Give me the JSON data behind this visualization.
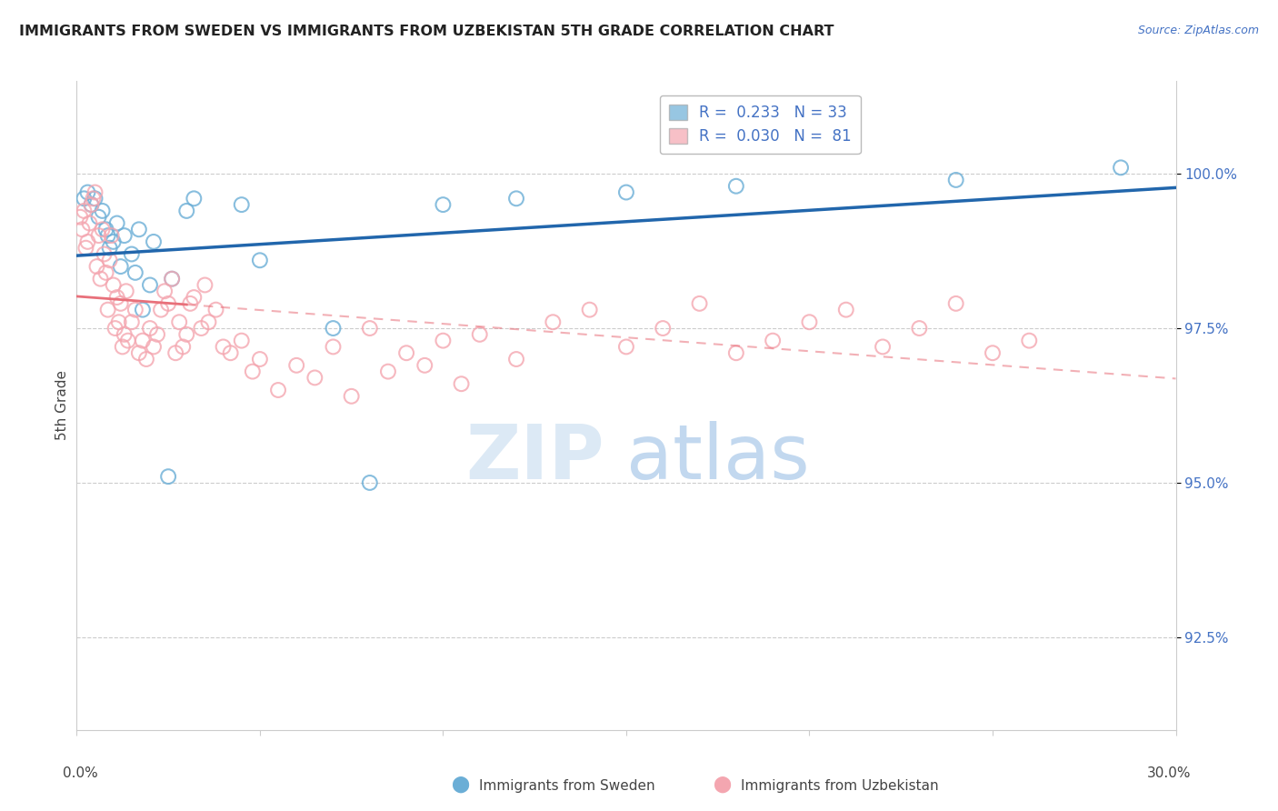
{
  "title": "IMMIGRANTS FROM SWEDEN VS IMMIGRANTS FROM UZBEKISTAN 5TH GRADE CORRELATION CHART",
  "source": "Source: ZipAtlas.com",
  "ylabel": "5th Grade",
  "yaxis_labels": [
    "92.5%",
    "95.0%",
    "97.5%",
    "100.0%"
  ],
  "yaxis_values": [
    92.5,
    95.0,
    97.5,
    100.0
  ],
  "xlim": [
    0.0,
    30.0
  ],
  "ylim": [
    91.0,
    101.5
  ],
  "legend_sweden": "R =  0.233   N = 33",
  "legend_uzbekistan": "R =  0.030   N =  81",
  "sweden_color": "#6baed6",
  "uzbekistan_color": "#f4a6b0",
  "trend_sweden_color": "#2166ac",
  "trend_uzbekistan_color": "#e8707a",
  "sweden_x": [
    0.2,
    0.3,
    0.4,
    0.5,
    0.6,
    0.7,
    0.8,
    0.85,
    0.9,
    1.0,
    1.1,
    1.2,
    1.3,
    1.5,
    1.6,
    1.7,
    1.8,
    2.0,
    2.1,
    2.5,
    2.6,
    3.0,
    3.2,
    4.5,
    5.0,
    7.0,
    8.0,
    10.0,
    12.0,
    15.0,
    18.0,
    24.0,
    28.5
  ],
  "sweden_y": [
    99.6,
    99.7,
    99.5,
    99.6,
    99.3,
    99.4,
    99.1,
    99.0,
    98.8,
    98.9,
    99.2,
    98.5,
    99.0,
    98.7,
    98.4,
    99.1,
    97.8,
    98.2,
    98.9,
    95.1,
    98.3,
    99.4,
    99.6,
    99.5,
    98.6,
    97.5,
    95.0,
    99.5,
    99.6,
    99.7,
    99.8,
    99.9,
    100.1
  ],
  "uzbekistan_x": [
    0.1,
    0.15,
    0.2,
    0.25,
    0.3,
    0.35,
    0.4,
    0.45,
    0.5,
    0.55,
    0.6,
    0.65,
    0.7,
    0.75,
    0.8,
    0.85,
    0.9,
    0.95,
    1.0,
    1.05,
    1.1,
    1.15,
    1.2,
    1.25,
    1.3,
    1.35,
    1.4,
    1.5,
    1.6,
    1.7,
    1.8,
    1.9,
    2.0,
    2.1,
    2.2,
    2.3,
    2.4,
    2.5,
    2.6,
    2.7,
    2.8,
    2.9,
    3.0,
    3.1,
    3.2,
    3.4,
    3.5,
    3.6,
    3.8,
    4.0,
    4.2,
    4.5,
    4.8,
    5.0,
    5.5,
    6.0,
    6.5,
    7.0,
    7.5,
    8.0,
    8.5,
    9.0,
    9.5,
    10.0,
    10.5,
    11.0,
    12.0,
    13.0,
    14.0,
    15.0,
    16.0,
    17.0,
    18.0,
    19.0,
    20.0,
    21.0,
    22.0,
    23.0,
    24.0,
    25.0,
    26.0
  ],
  "uzbekistan_y": [
    99.3,
    99.1,
    99.4,
    98.8,
    98.9,
    99.2,
    99.5,
    99.6,
    99.7,
    98.5,
    99.0,
    98.3,
    99.1,
    98.7,
    98.4,
    97.8,
    98.6,
    99.0,
    98.2,
    97.5,
    98.0,
    97.6,
    97.9,
    97.2,
    97.4,
    98.1,
    97.3,
    97.6,
    97.8,
    97.1,
    97.3,
    97.0,
    97.5,
    97.2,
    97.4,
    97.8,
    98.1,
    97.9,
    98.3,
    97.1,
    97.6,
    97.2,
    97.4,
    97.9,
    98.0,
    97.5,
    98.2,
    97.6,
    97.8,
    97.2,
    97.1,
    97.3,
    96.8,
    97.0,
    96.5,
    96.9,
    96.7,
    97.2,
    96.4,
    97.5,
    96.8,
    97.1,
    96.9,
    97.3,
    96.6,
    97.4,
    97.0,
    97.6,
    97.8,
    97.2,
    97.5,
    97.9,
    97.1,
    97.3,
    97.6,
    97.8,
    97.2,
    97.5,
    97.9,
    97.1,
    97.3
  ]
}
